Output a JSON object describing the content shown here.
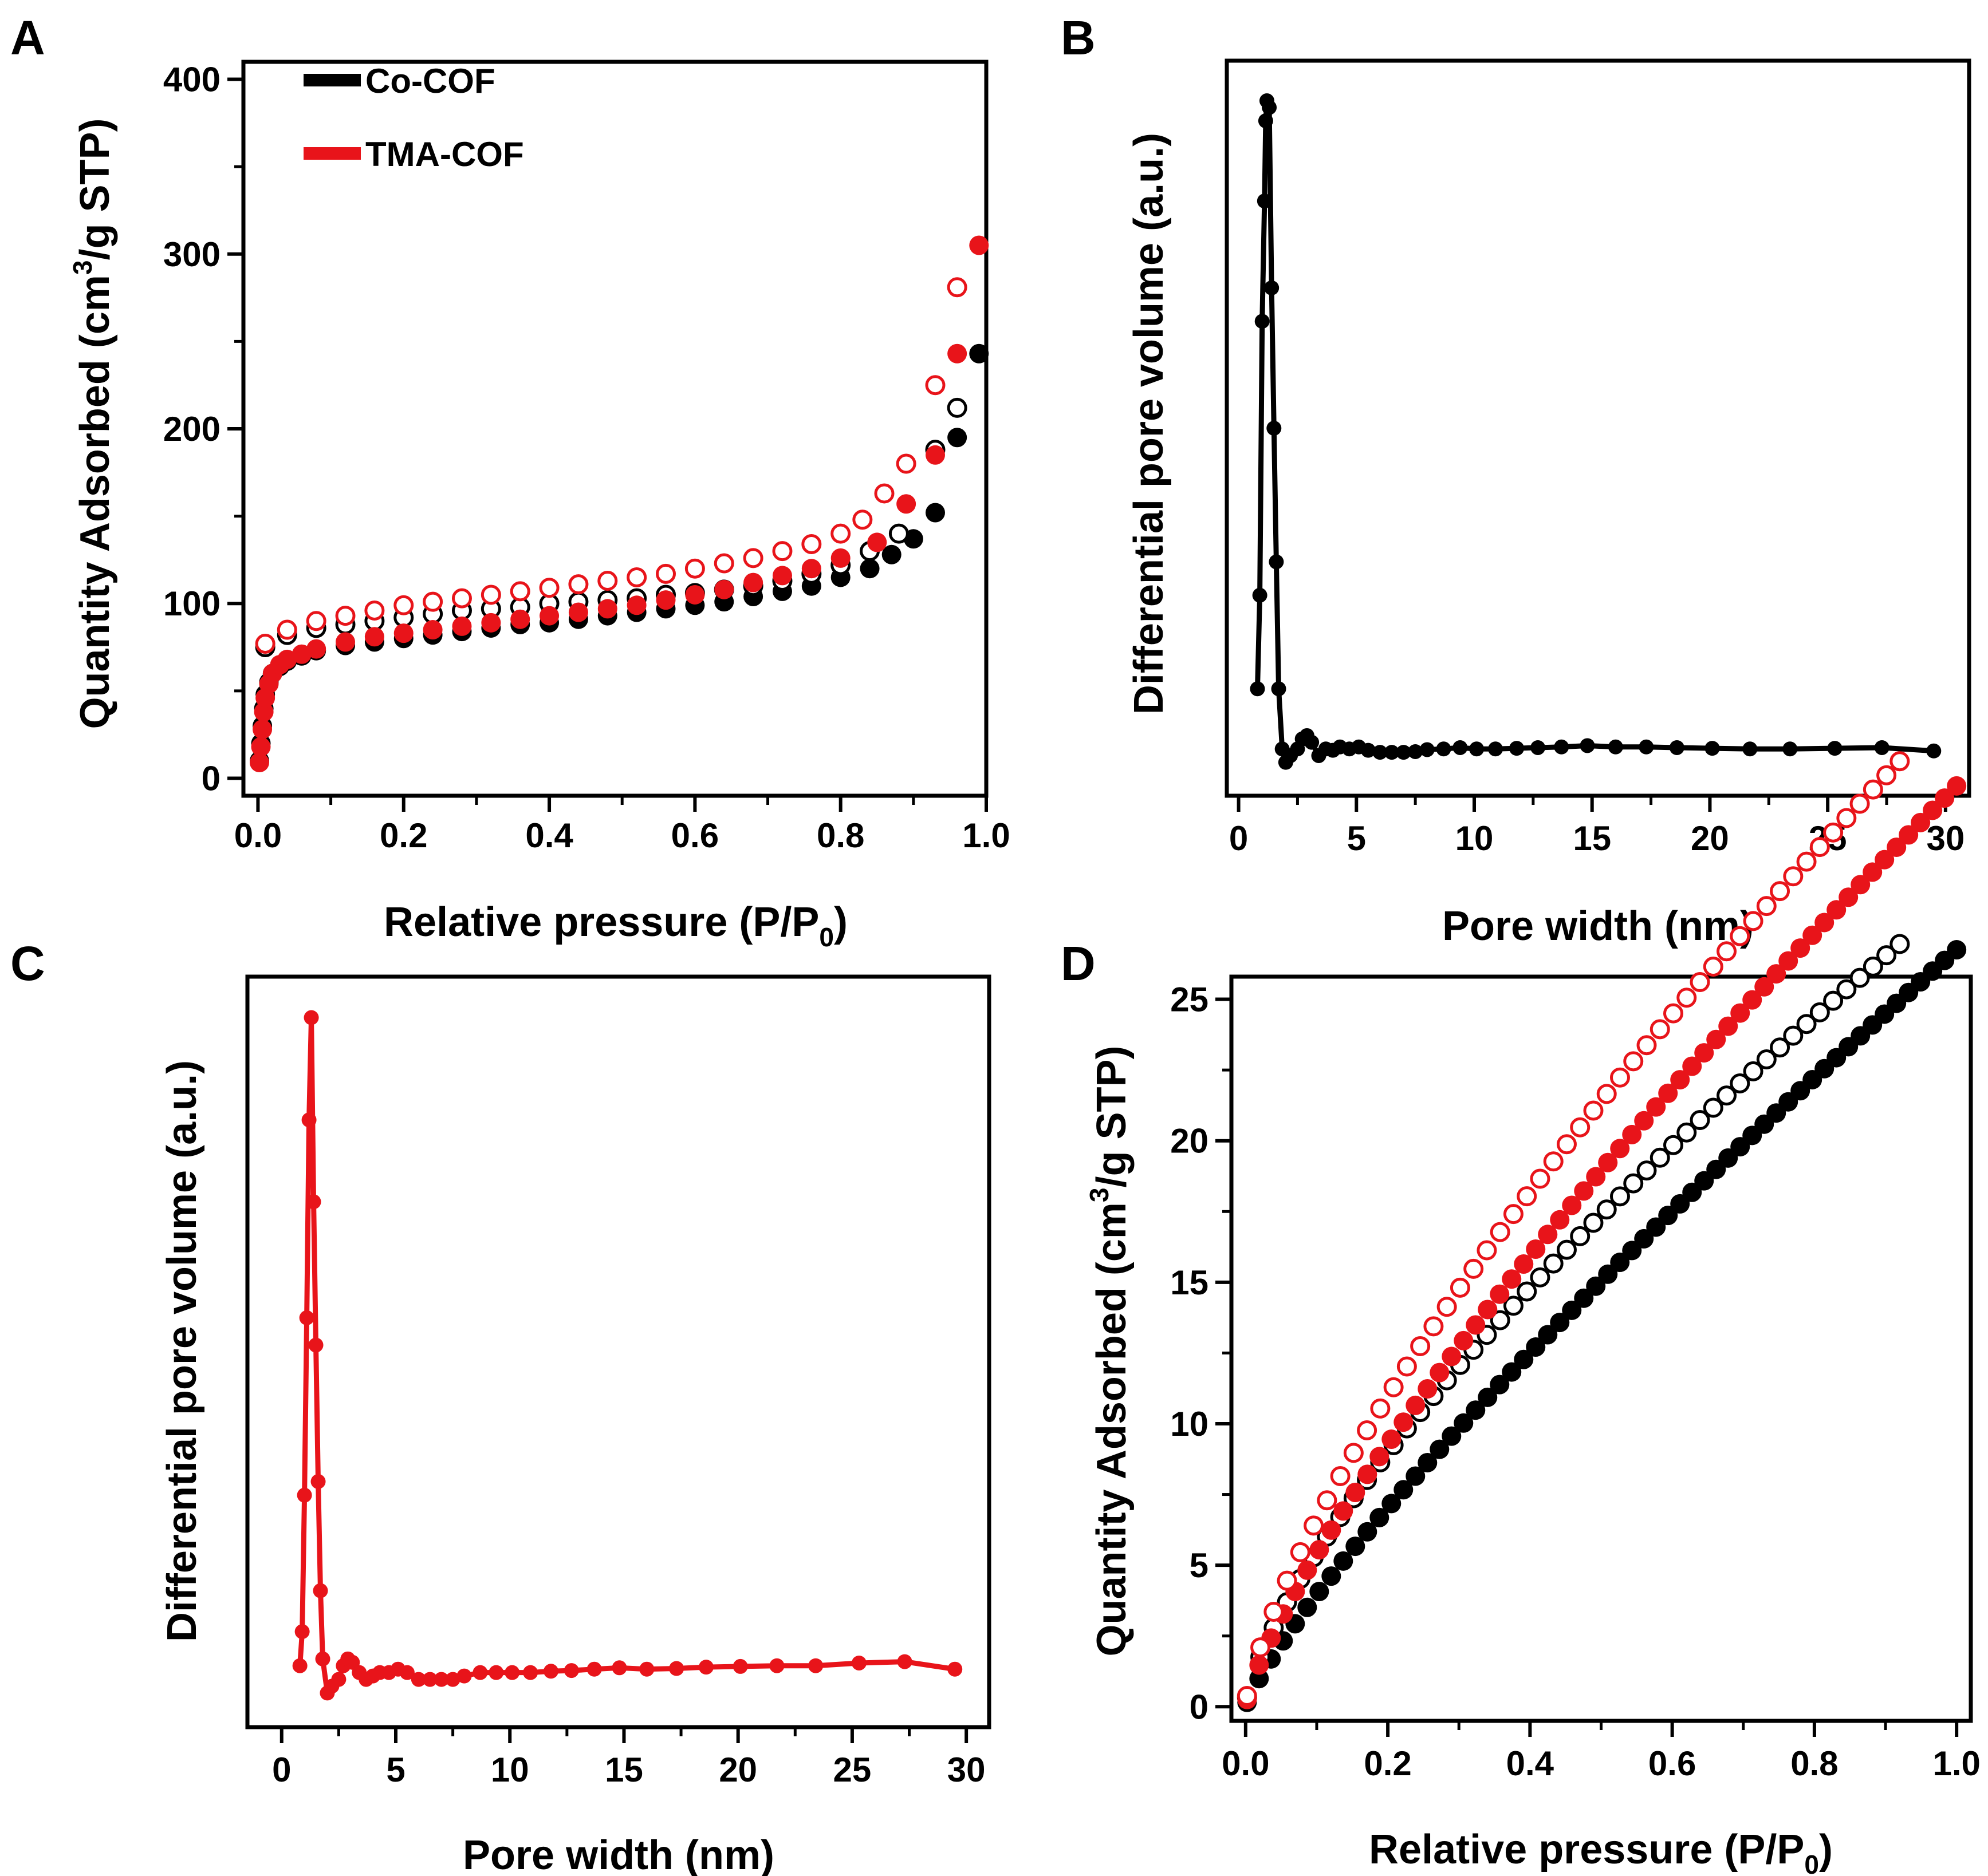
{
  "chart_data": [
    {
      "panel_letter": "A",
      "type": "scatter",
      "xlabel": "Relative pressure (P/P",
      "xlabel_sub": "0",
      "xlabel_end": ")",
      "ylabel": "Quantity Adsorbed (cm",
      "ylabel_sup": "3",
      "ylabel_end": "/g STP)",
      "xlim": [
        -0.02,
        1.0
      ],
      "ylim": [
        -10,
        410
      ],
      "xticks": [
        "0.0",
        "0.2",
        "0.4",
        "0.6",
        "0.8",
        "1.0"
      ],
      "xtick_values": [
        0,
        0.2,
        0.4,
        0.6,
        0.8,
        1.0
      ],
      "yticks": [
        "0",
        "100",
        "200",
        "300",
        "400"
      ],
      "ytick_values": [
        0,
        100,
        200,
        300,
        400
      ],
      "legend": {
        "placement": "top-left",
        "entries": [
          {
            "label": "Co-COF",
            "color": "#000000"
          },
          {
            "label": "TMA-COF",
            "color": "#e8141a"
          }
        ]
      },
      "series": [
        {
          "name": "Co-COF",
          "kind": "adsorption",
          "color": "#000000",
          "filled": true,
          "x": [
            0.002,
            0.004,
            0.006,
            0.008,
            0.01,
            0.015,
            0.02,
            0.03,
            0.04,
            0.06,
            0.08,
            0.12,
            0.16,
            0.2,
            0.24,
            0.28,
            0.32,
            0.36,
            0.4,
            0.44,
            0.48,
            0.52,
            0.56,
            0.6,
            0.64,
            0.68,
            0.72,
            0.76,
            0.8,
            0.84,
            0.87,
            0.9,
            0.93,
            0.96,
            0.99
          ],
          "y": [
            10,
            20,
            30,
            40,
            48,
            55,
            60,
            64,
            67,
            70,
            73,
            76,
            78,
            80,
            82,
            84,
            86,
            88,
            89,
            91,
            93,
            95,
            97,
            99,
            101,
            104,
            107,
            110,
            115,
            120,
            128,
            137,
            152,
            195,
            243
          ]
        },
        {
          "name": "Co-COF",
          "kind": "desorption",
          "color": "#000000",
          "filled": false,
          "x": [
            0.01,
            0.04,
            0.08,
            0.12,
            0.16,
            0.2,
            0.24,
            0.28,
            0.32,
            0.36,
            0.4,
            0.44,
            0.48,
            0.52,
            0.56,
            0.6,
            0.64,
            0.68,
            0.72,
            0.76,
            0.8,
            0.84,
            0.88,
            0.93,
            0.96
          ],
          "y": [
            75,
            82,
            86,
            88,
            90,
            92,
            94,
            96,
            97,
            98,
            100,
            101,
            102,
            103,
            105,
            106,
            108,
            110,
            113,
            117,
            122,
            130,
            140,
            188,
            212
          ]
        },
        {
          "name": "TMA-COF",
          "kind": "adsorption",
          "color": "#e8141a",
          "filled": true,
          "x": [
            0.002,
            0.004,
            0.006,
            0.008,
            0.01,
            0.015,
            0.02,
            0.03,
            0.04,
            0.06,
            0.08,
            0.12,
            0.16,
            0.2,
            0.24,
            0.28,
            0.32,
            0.36,
            0.4,
            0.44,
            0.48,
            0.52,
            0.56,
            0.6,
            0.64,
            0.68,
            0.72,
            0.76,
            0.8,
            0.85,
            0.89,
            0.93,
            0.96,
            0.99
          ],
          "y": [
            9,
            18,
            28,
            38,
            46,
            54,
            60,
            65,
            68,
            71,
            74,
            78,
            81,
            83,
            85,
            87,
            89,
            91,
            93,
            95,
            97,
            99,
            102,
            105,
            108,
            112,
            116,
            120,
            126,
            135,
            157,
            185,
            243,
            305
          ]
        },
        {
          "name": "TMA-COF",
          "kind": "desorption",
          "color": "#e8141a",
          "filled": false,
          "x": [
            0.01,
            0.04,
            0.08,
            0.12,
            0.16,
            0.2,
            0.24,
            0.28,
            0.32,
            0.36,
            0.4,
            0.44,
            0.48,
            0.52,
            0.56,
            0.6,
            0.64,
            0.68,
            0.72,
            0.76,
            0.8,
            0.83,
            0.86,
            0.89,
            0.93,
            0.96
          ],
          "y": [
            77,
            85,
            90,
            93,
            96,
            99,
            101,
            103,
            105,
            107,
            109,
            111,
            113,
            115,
            117,
            120,
            123,
            126,
            130,
            134,
            140,
            148,
            163,
            180,
            225,
            281
          ]
        }
      ]
    },
    {
      "panel_letter": "B",
      "type": "line",
      "xlabel": "Pore width (nm)",
      "ylabel": "Differential pore volume (a.u.)",
      "xlim": [
        -0.5,
        31
      ],
      "ylim": [
        -0.04,
        1.06
      ],
      "xticks": [
        "0",
        "5",
        "10",
        "15",
        "20",
        "25",
        "30"
      ],
      "xtick_values": [
        0,
        5,
        10,
        15,
        20,
        25,
        30
      ],
      "series": [
        {
          "name": "",
          "color": "#000000",
          "x": [
            0.8,
            0.9,
            1.0,
            1.1,
            1.15,
            1.2,
            1.3,
            1.4,
            1.5,
            1.6,
            1.7,
            1.85,
            2.0,
            2.2,
            2.5,
            2.7,
            2.9,
            3.1,
            3.4,
            3.7,
            4.0,
            4.3,
            4.7,
            5.1,
            5.5,
            6.0,
            6.5,
            7.0,
            7.5,
            8.0,
            8.7,
            9.4,
            10.1,
            10.9,
            11.8,
            12.7,
            13.7,
            14.8,
            16.0,
            17.3,
            18.6,
            20.1,
            21.7,
            23.4,
            25.3,
            27.3,
            29.5
          ],
          "y": [
            0.12,
            0.26,
            0.67,
            0.85,
            0.97,
            1.0,
            0.99,
            0.72,
            0.51,
            0.31,
            0.12,
            0.03,
            0.01,
            0.02,
            0.03,
            0.045,
            0.05,
            0.04,
            0.02,
            0.03,
            0.028,
            0.033,
            0.03,
            0.033,
            0.028,
            0.025,
            0.025,
            0.025,
            0.026,
            0.029,
            0.03,
            0.032,
            0.03,
            0.03,
            0.031,
            0.032,
            0.033,
            0.035,
            0.033,
            0.033,
            0.032,
            0.031,
            0.03,
            0.03,
            0.031,
            0.032,
            0.027
          ]
        }
      ]
    },
    {
      "panel_letter": "C",
      "type": "line",
      "xlabel": "Pore width (nm)",
      "ylabel": "Differential pore volume (a.u.)",
      "xlim": [
        -1.5,
        31
      ],
      "ylim": [
        -0.04,
        1.06
      ],
      "xticks": [
        "0",
        "5",
        "10",
        "15",
        "20",
        "25",
        "30"
      ],
      "xtick_values": [
        0,
        5,
        10,
        15,
        20,
        25,
        30
      ],
      "series": [
        {
          "name": "",
          "color": "#e8141a",
          "x": [
            0.8,
            0.9,
            1.0,
            1.1,
            1.2,
            1.3,
            1.4,
            1.5,
            1.6,
            1.7,
            1.8,
            2.0,
            2.2,
            2.5,
            2.7,
            2.9,
            3.1,
            3.4,
            3.7,
            4.0,
            4.3,
            4.7,
            5.1,
            5.5,
            6.0,
            6.5,
            7.0,
            7.5,
            8.0,
            8.7,
            9.4,
            10.1,
            10.9,
            11.8,
            12.7,
            13.7,
            14.8,
            16.0,
            17.3,
            18.6,
            20.1,
            21.7,
            23.4,
            25.3,
            27.3,
            29.5
          ],
          "y": [
            0.05,
            0.1,
            0.3,
            0.56,
            0.85,
            1.0,
            0.73,
            0.52,
            0.32,
            0.16,
            0.06,
            0.01,
            0.02,
            0.03,
            0.05,
            0.06,
            0.055,
            0.04,
            0.03,
            0.035,
            0.04,
            0.04,
            0.045,
            0.04,
            0.03,
            0.03,
            0.03,
            0.03,
            0.035,
            0.04,
            0.04,
            0.04,
            0.04,
            0.042,
            0.043,
            0.045,
            0.047,
            0.045,
            0.046,
            0.048,
            0.049,
            0.05,
            0.05,
            0.054,
            0.056,
            0.045
          ]
        }
      ]
    },
    {
      "panel_letter": "D",
      "type": "scatter",
      "xlabel": "Relative pressure (P/P",
      "xlabel_sub": "0",
      "xlabel_end": ")",
      "ylabel": "Quantity Adsorbed (cm",
      "ylabel_sup": "3",
      "ylabel_end": "/g STP)",
      "xlim": [
        -0.02,
        1.02
      ],
      "ylim": [
        -0.5,
        25.8
      ],
      "xticks": [
        "0.0",
        "0.2",
        "0.4",
        "0.6",
        "0.8",
        "1.0"
      ],
      "xtick_values": [
        0,
        0.2,
        0.4,
        0.6,
        0.8,
        1.0
      ],
      "yticks": [
        "0",
        "5",
        "10",
        "15",
        "20",
        "25"
      ],
      "ytick_values": [
        0,
        5,
        10,
        15,
        20,
        25
      ],
      "series": [
        {
          "name": "Co-COF",
          "kind": "adsorption",
          "color": "#000000",
          "filled": true,
          "curve": {
            "a": 26.75,
            "p": 0.83
          },
          "n": 60,
          "x_max": 1.0
        },
        {
          "name": "Co-COF",
          "kind": "desorption",
          "color": "#000000",
          "filled": false,
          "curve": {
            "a": 28.62,
            "p": 0.72
          },
          "n": 50,
          "x_max": 0.92
        },
        {
          "name": "TMA-COF",
          "kind": "adsorption",
          "color": "#e8141a",
          "filled": true,
          "curve": {
            "a": 32.54,
            "p": 0.78
          },
          "n": 60,
          "x_max": 1.0
        },
        {
          "name": "TMA-COF",
          "kind": "desorption",
          "color": "#e8141a",
          "filled": false,
          "curve": {
            "a": 35.51,
            "p": 0.73
          },
          "n": 50,
          "x_max": 0.92
        }
      ]
    }
  ]
}
